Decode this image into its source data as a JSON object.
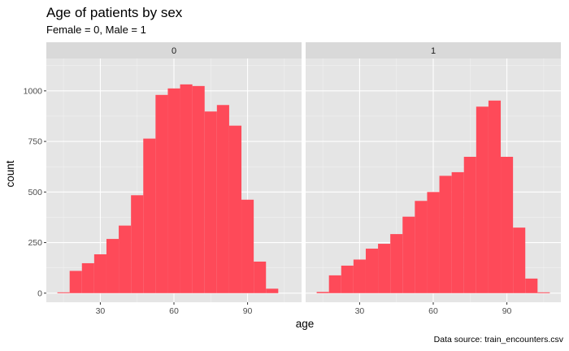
{
  "chart_data": {
    "type": "histogram",
    "title": "Age of patients by sex",
    "subtitle": "Female = 0, Male = 1",
    "xlabel": "age",
    "ylabel": "count",
    "caption": "Data source: train_encounters.csv",
    "xlim": [
      8,
      112
    ],
    "ylim": [
      -45,
      1160
    ],
    "x_ticks": [
      30,
      60,
      90
    ],
    "y_ticks": [
      0,
      250,
      500,
      750,
      1000
    ],
    "bin_width": 5,
    "grid": true,
    "bar_color": "#fe4a59",
    "panel_bg": "#e5e5e5",
    "strip_bg": "#d9d9d9",
    "panels": [
      {
        "label": "0",
        "bins": [
          {
            "x0": 12.5,
            "x1": 17.5,
            "count": 4
          },
          {
            "x0": 17.5,
            "x1": 22.5,
            "count": 110
          },
          {
            "x0": 22.5,
            "x1": 27.5,
            "count": 148
          },
          {
            "x0": 27.5,
            "x1": 32.5,
            "count": 192
          },
          {
            "x0": 32.5,
            "x1": 37.5,
            "count": 268
          },
          {
            "x0": 37.5,
            "x1": 42.5,
            "count": 334
          },
          {
            "x0": 42.5,
            "x1": 47.5,
            "count": 484
          },
          {
            "x0": 47.5,
            "x1": 52.5,
            "count": 764
          },
          {
            "x0": 52.5,
            "x1": 57.5,
            "count": 980
          },
          {
            "x0": 57.5,
            "x1": 62.5,
            "count": 1012
          },
          {
            "x0": 62.5,
            "x1": 67.5,
            "count": 1032
          },
          {
            "x0": 67.5,
            "x1": 72.5,
            "count": 1024
          },
          {
            "x0": 72.5,
            "x1": 77.5,
            "count": 898
          },
          {
            "x0": 77.5,
            "x1": 82.5,
            "count": 930
          },
          {
            "x0": 82.5,
            "x1": 87.5,
            "count": 828
          },
          {
            "x0": 87.5,
            "x1": 92.5,
            "count": 462
          },
          {
            "x0": 92.5,
            "x1": 97.5,
            "count": 156
          },
          {
            "x0": 97.5,
            "x1": 102.5,
            "count": 22
          }
        ]
      },
      {
        "label": "1",
        "bins": [
          {
            "x0": 12.5,
            "x1": 17.5,
            "count": 6
          },
          {
            "x0": 17.5,
            "x1": 22.5,
            "count": 88
          },
          {
            "x0": 22.5,
            "x1": 27.5,
            "count": 136
          },
          {
            "x0": 27.5,
            "x1": 32.5,
            "count": 166
          },
          {
            "x0": 32.5,
            "x1": 37.5,
            "count": 220
          },
          {
            "x0": 37.5,
            "x1": 42.5,
            "count": 244
          },
          {
            "x0": 42.5,
            "x1": 47.5,
            "count": 292
          },
          {
            "x0": 47.5,
            "x1": 52.5,
            "count": 378
          },
          {
            "x0": 52.5,
            "x1": 57.5,
            "count": 456
          },
          {
            "x0": 57.5,
            "x1": 62.5,
            "count": 500
          },
          {
            "x0": 62.5,
            "x1": 67.5,
            "count": 580
          },
          {
            "x0": 67.5,
            "x1": 72.5,
            "count": 598
          },
          {
            "x0": 72.5,
            "x1": 77.5,
            "count": 674
          },
          {
            "x0": 77.5,
            "x1": 82.5,
            "count": 922
          },
          {
            "x0": 82.5,
            "x1": 87.5,
            "count": 952
          },
          {
            "x0": 87.5,
            "x1": 92.5,
            "count": 674
          },
          {
            "x0": 92.5,
            "x1": 97.5,
            "count": 324
          },
          {
            "x0": 97.5,
            "x1": 102.5,
            "count": 72
          },
          {
            "x0": 102.5,
            "x1": 107.5,
            "count": 4
          }
        ]
      }
    ]
  }
}
